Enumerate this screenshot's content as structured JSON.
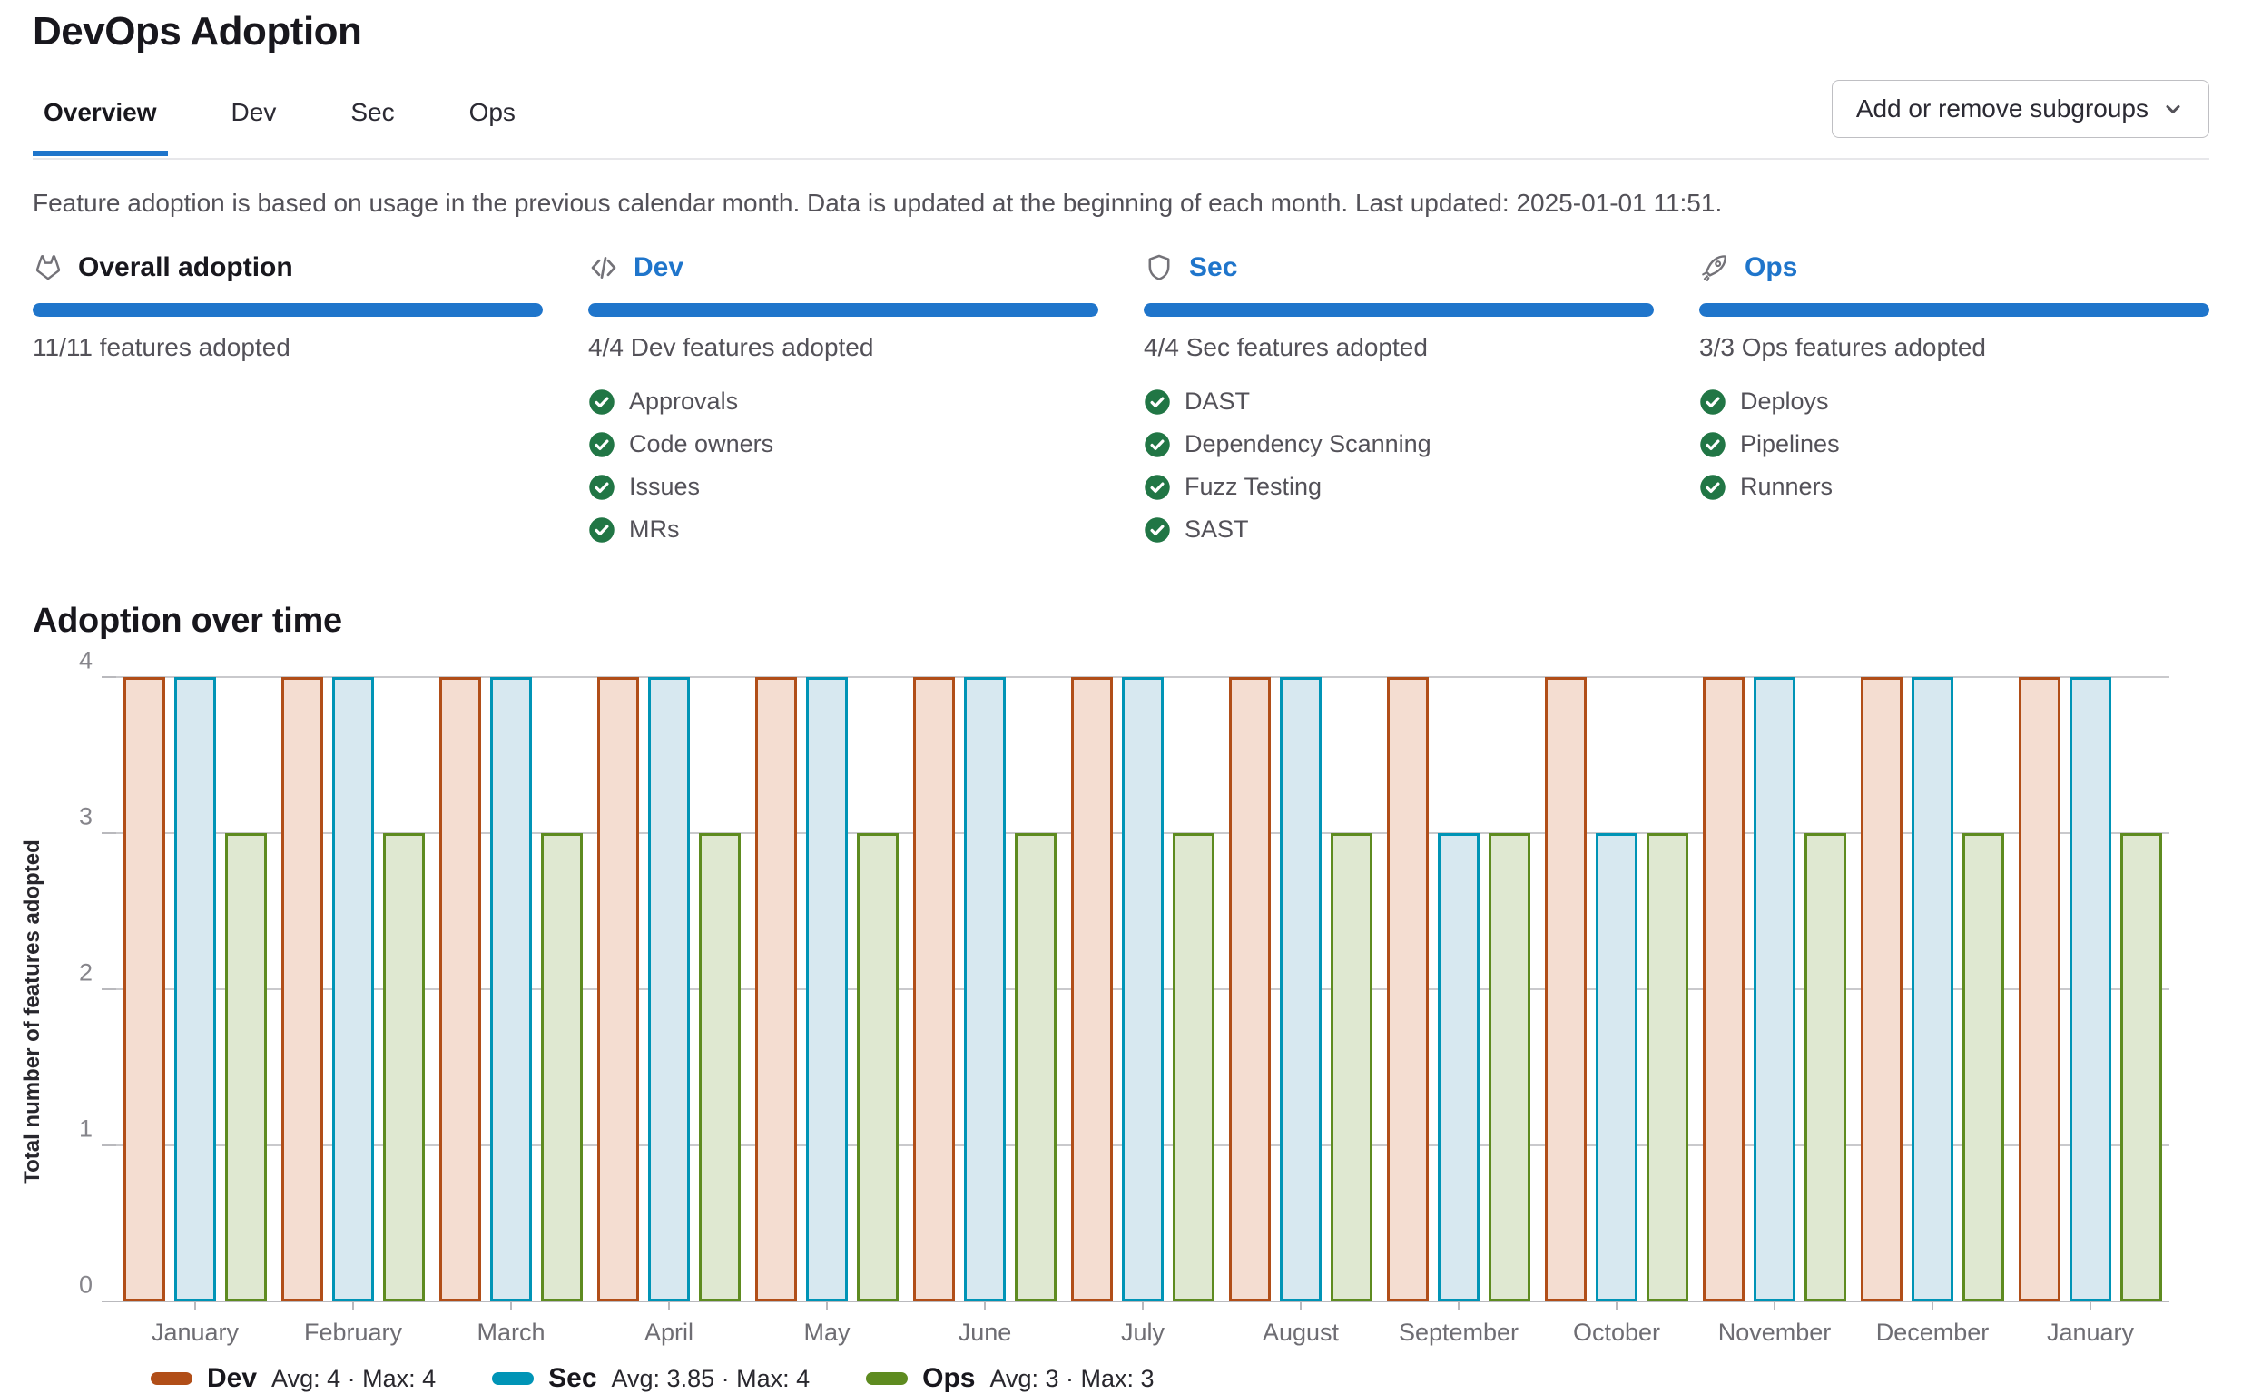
{
  "page": {
    "title": "DevOps Adoption"
  },
  "tabs": [
    {
      "id": "overview",
      "label": "Overview",
      "active": true
    },
    {
      "id": "dev",
      "label": "Dev",
      "active": false
    },
    {
      "id": "sec",
      "label": "Sec",
      "active": false
    },
    {
      "id": "ops",
      "label": "Ops",
      "active": false
    }
  ],
  "subgroups_button": {
    "label": "Add or remove subgroups"
  },
  "info_text": "Feature adoption is based on usage in the previous calendar month. Data is updated at the beginning of each month. Last updated: 2025-01-01 11:51.",
  "cards": [
    {
      "id": "overall",
      "icon": "tanuki-icon",
      "title": "Overall adoption",
      "link": false,
      "progress_pct": 100,
      "subtitle": "11/11 features adopted",
      "features": []
    },
    {
      "id": "dev",
      "icon": "code-icon",
      "title": "Dev",
      "link": true,
      "progress_pct": 100,
      "subtitle": "4/4 Dev features adopted",
      "features": [
        "Approvals",
        "Code owners",
        "Issues",
        "MRs"
      ]
    },
    {
      "id": "sec",
      "icon": "shield-icon",
      "title": "Sec",
      "link": true,
      "progress_pct": 100,
      "subtitle": "4/4 Sec features adopted",
      "features": [
        "DAST",
        "Dependency Scanning",
        "Fuzz Testing",
        "SAST"
      ]
    },
    {
      "id": "ops",
      "icon": "rocket-icon",
      "title": "Ops",
      "link": true,
      "progress_pct": 100,
      "subtitle": "3/3 Ops features adopted",
      "features": [
        "Deploys",
        "Pipelines",
        "Runners"
      ]
    }
  ],
  "section_title": "Adoption over time",
  "chart_data": {
    "type": "bar",
    "title": "Adoption over time",
    "xlabel": "",
    "ylabel": "Total number of features adopted",
    "ylim": [
      0,
      4
    ],
    "yticks": [
      0,
      1,
      2,
      3,
      4
    ],
    "grid": true,
    "legend_position": "bottom",
    "categories": [
      "January",
      "February",
      "March",
      "April",
      "May",
      "June",
      "July",
      "August",
      "September",
      "October",
      "November",
      "December",
      "January"
    ],
    "series": [
      {
        "name": "Dev",
        "values": [
          4,
          4,
          4,
          4,
          4,
          4,
          4,
          4,
          4,
          4,
          4,
          4,
          4
        ],
        "stroke": "#b14e18",
        "fill": "#f4ddd1",
        "avg": "4",
        "max": "4"
      },
      {
        "name": "Sec",
        "values": [
          4,
          4,
          4,
          4,
          4,
          4,
          4,
          4,
          3,
          3,
          4,
          4,
          4
        ],
        "stroke": "#0094b6",
        "fill": "#d7e8f0",
        "avg": "3.85",
        "max": "4"
      },
      {
        "name": "Ops",
        "values": [
          3,
          3,
          3,
          3,
          3,
          3,
          3,
          3,
          3,
          3,
          3,
          3,
          3
        ],
        "stroke": "#5e8b20",
        "fill": "#dfe8d1",
        "avg": "3",
        "max": "3"
      }
    ]
  },
  "legend": [
    {
      "name": "Dev",
      "stats": "Avg: 4 · Max: 4"
    },
    {
      "name": "Sec",
      "stats": "Avg: 3.85 · Max: 4"
    },
    {
      "name": "Ops",
      "stats": "Avg: 3 · Max: 3"
    }
  ],
  "colors": {
    "accent_blue": "#1f75cb",
    "progress_blue": "#1f75cb",
    "check_green": "#217645",
    "icon_gray": "#737278",
    "gridline": "#c9c9cc",
    "axis_line": "#b9b9bd"
  }
}
